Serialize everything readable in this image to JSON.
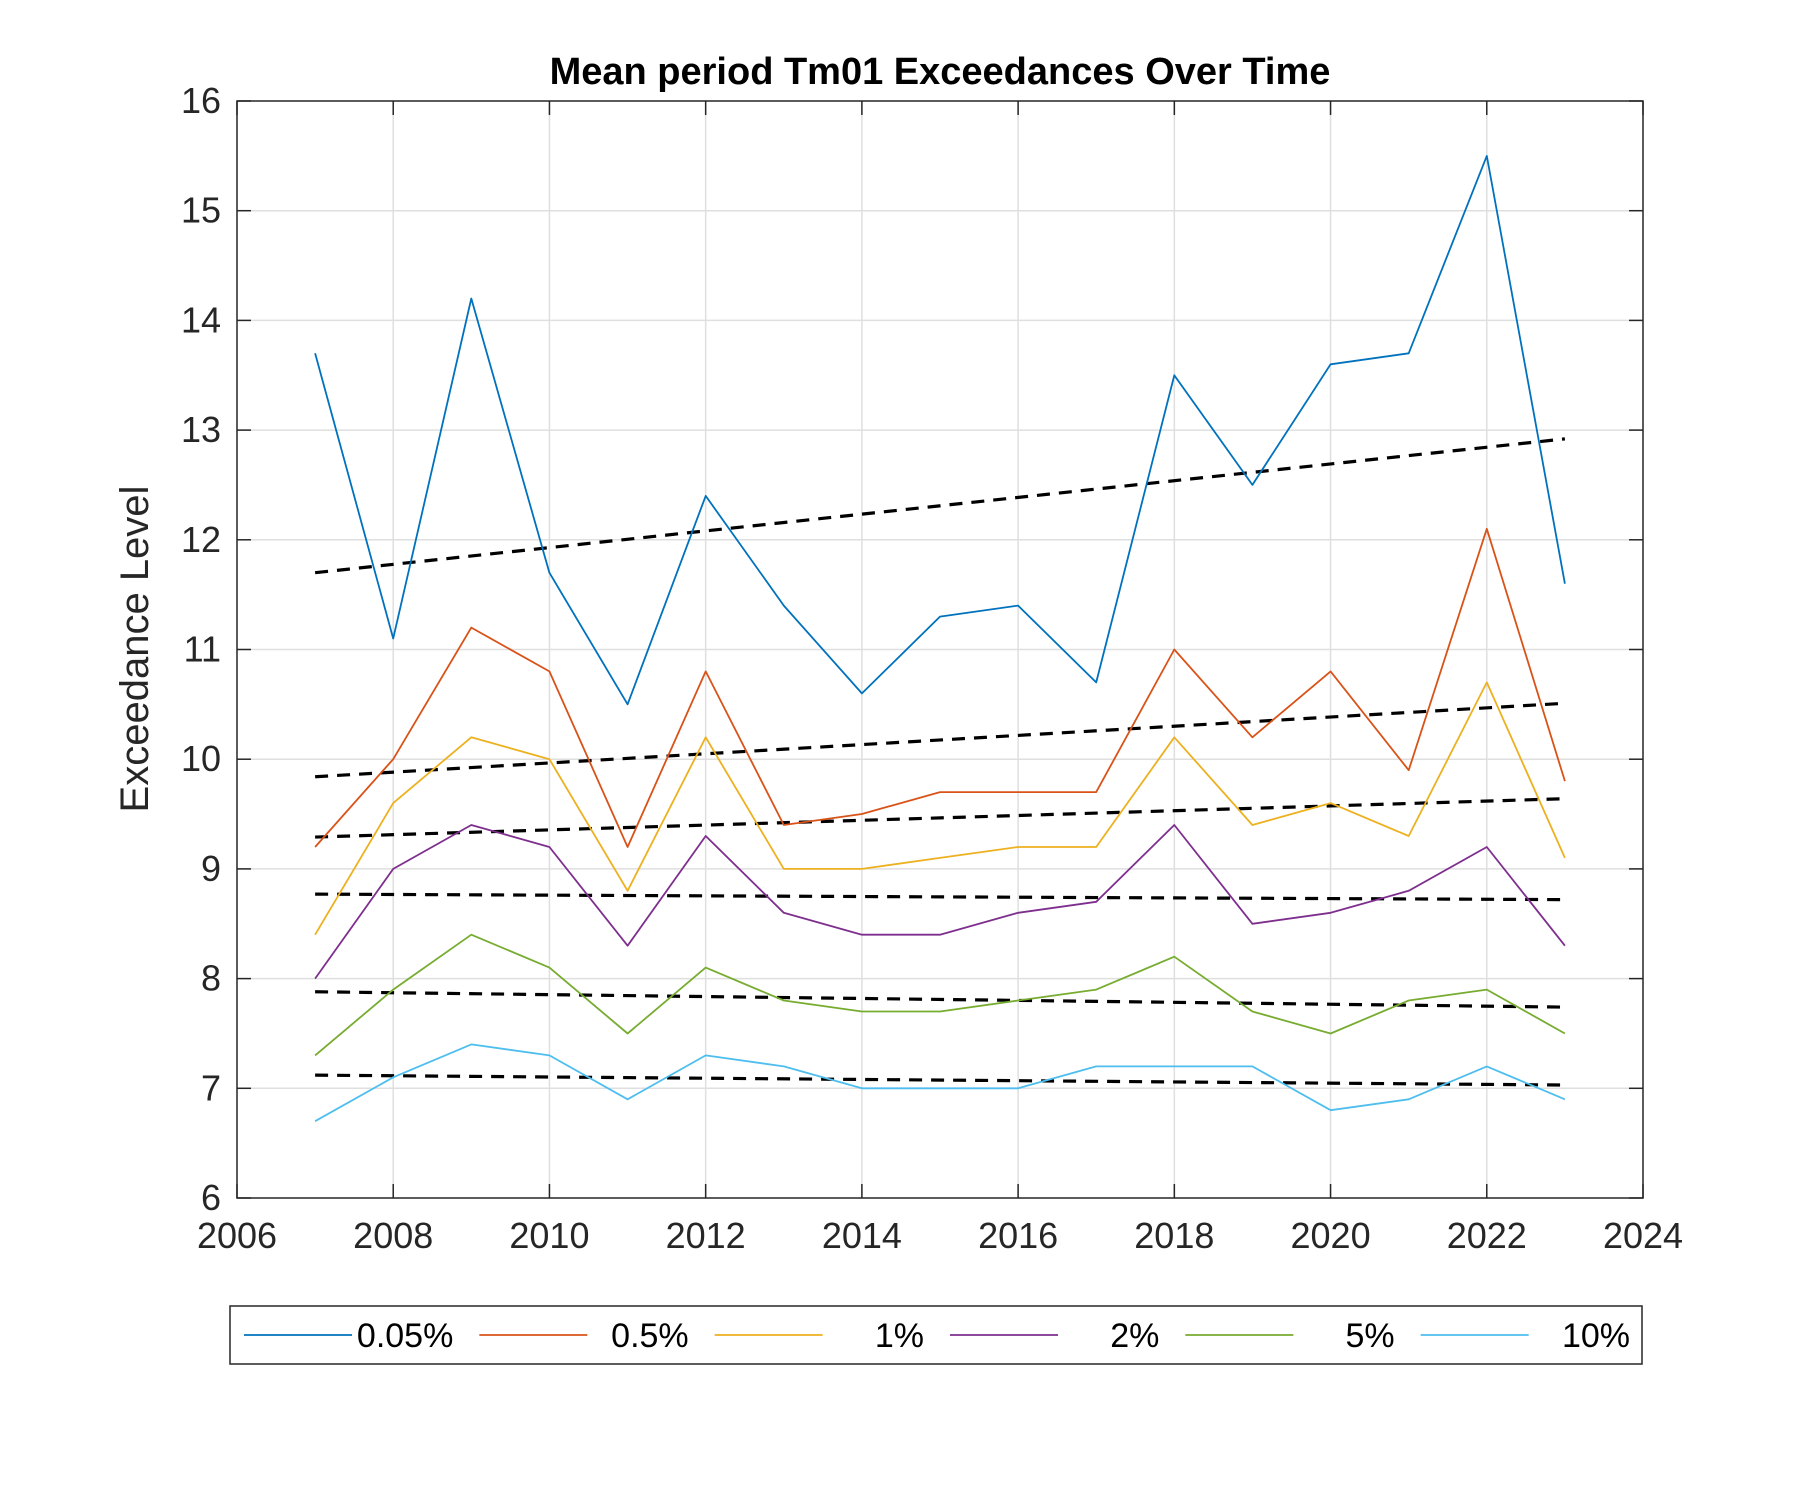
{
  "chart_data": {
    "type": "line",
    "title": "Mean period Tm01 Exceedances Over Time",
    "xlabel": "",
    "ylabel": "Exceedance Level",
    "xlim": [
      2006,
      2024
    ],
    "ylim": [
      6,
      16
    ],
    "xticks": [
      2006,
      2008,
      2010,
      2012,
      2014,
      2016,
      2018,
      2020,
      2022,
      2024
    ],
    "yticks": [
      6,
      7,
      8,
      9,
      10,
      11,
      12,
      13,
      14,
      15,
      16
    ],
    "grid": true,
    "legend_position": "bottom-outside-horizontal",
    "x": [
      2007,
      2008,
      2009,
      2010,
      2011,
      2012,
      2013,
      2014,
      2015,
      2016,
      2017,
      2018,
      2019,
      2020,
      2021,
      2022,
      2023
    ],
    "series": [
      {
        "name": "0.05%",
        "color": "#0072BD",
        "values": [
          13.7,
          11.1,
          14.2,
          11.7,
          10.5,
          12.4,
          11.4,
          10.6,
          11.3,
          11.4,
          10.7,
          13.5,
          12.5,
          13.6,
          13.7,
          15.5,
          11.6
        ],
        "trend": [
          11.7,
          12.92
        ]
      },
      {
        "name": "0.5%",
        "color": "#D95319",
        "values": [
          9.2,
          10.0,
          11.2,
          10.8,
          9.2,
          10.8,
          9.4,
          9.5,
          9.7,
          9.7,
          9.7,
          11.0,
          10.2,
          10.8,
          9.9,
          12.1,
          9.8
        ],
        "trend": [
          9.84,
          10.51
        ]
      },
      {
        "name": "1%",
        "color": "#EDB120",
        "values": [
          8.4,
          9.6,
          10.2,
          10.0,
          8.8,
          10.2,
          9.0,
          9.0,
          9.1,
          9.2,
          9.2,
          10.2,
          9.4,
          9.6,
          9.3,
          10.7,
          9.1
        ],
        "trend": [
          9.29,
          9.64
        ]
      },
      {
        "name": "2%",
        "color": "#7E2F8E",
        "values": [
          8.0,
          9.0,
          9.4,
          9.2,
          8.3,
          9.3,
          8.6,
          8.4,
          8.4,
          8.6,
          8.7,
          9.4,
          8.5,
          8.6,
          8.8,
          9.2,
          8.3
        ],
        "trend": [
          8.77,
          8.72
        ]
      },
      {
        "name": "5%",
        "color": "#77AC30",
        "values": [
          7.3,
          7.9,
          8.4,
          8.1,
          7.5,
          8.1,
          7.8,
          7.7,
          7.7,
          7.8,
          7.9,
          8.2,
          7.7,
          7.5,
          7.8,
          7.9,
          7.5
        ],
        "trend": [
          7.88,
          7.74
        ]
      },
      {
        "name": "10%",
        "color": "#4DBEEE",
        "values": [
          6.7,
          7.1,
          7.4,
          7.3,
          6.9,
          7.3,
          7.2,
          7.0,
          7.0,
          7.0,
          7.2,
          7.2,
          7.2,
          6.8,
          6.9,
          7.2,
          6.9
        ],
        "trend": [
          7.12,
          7.03
        ]
      }
    ]
  }
}
